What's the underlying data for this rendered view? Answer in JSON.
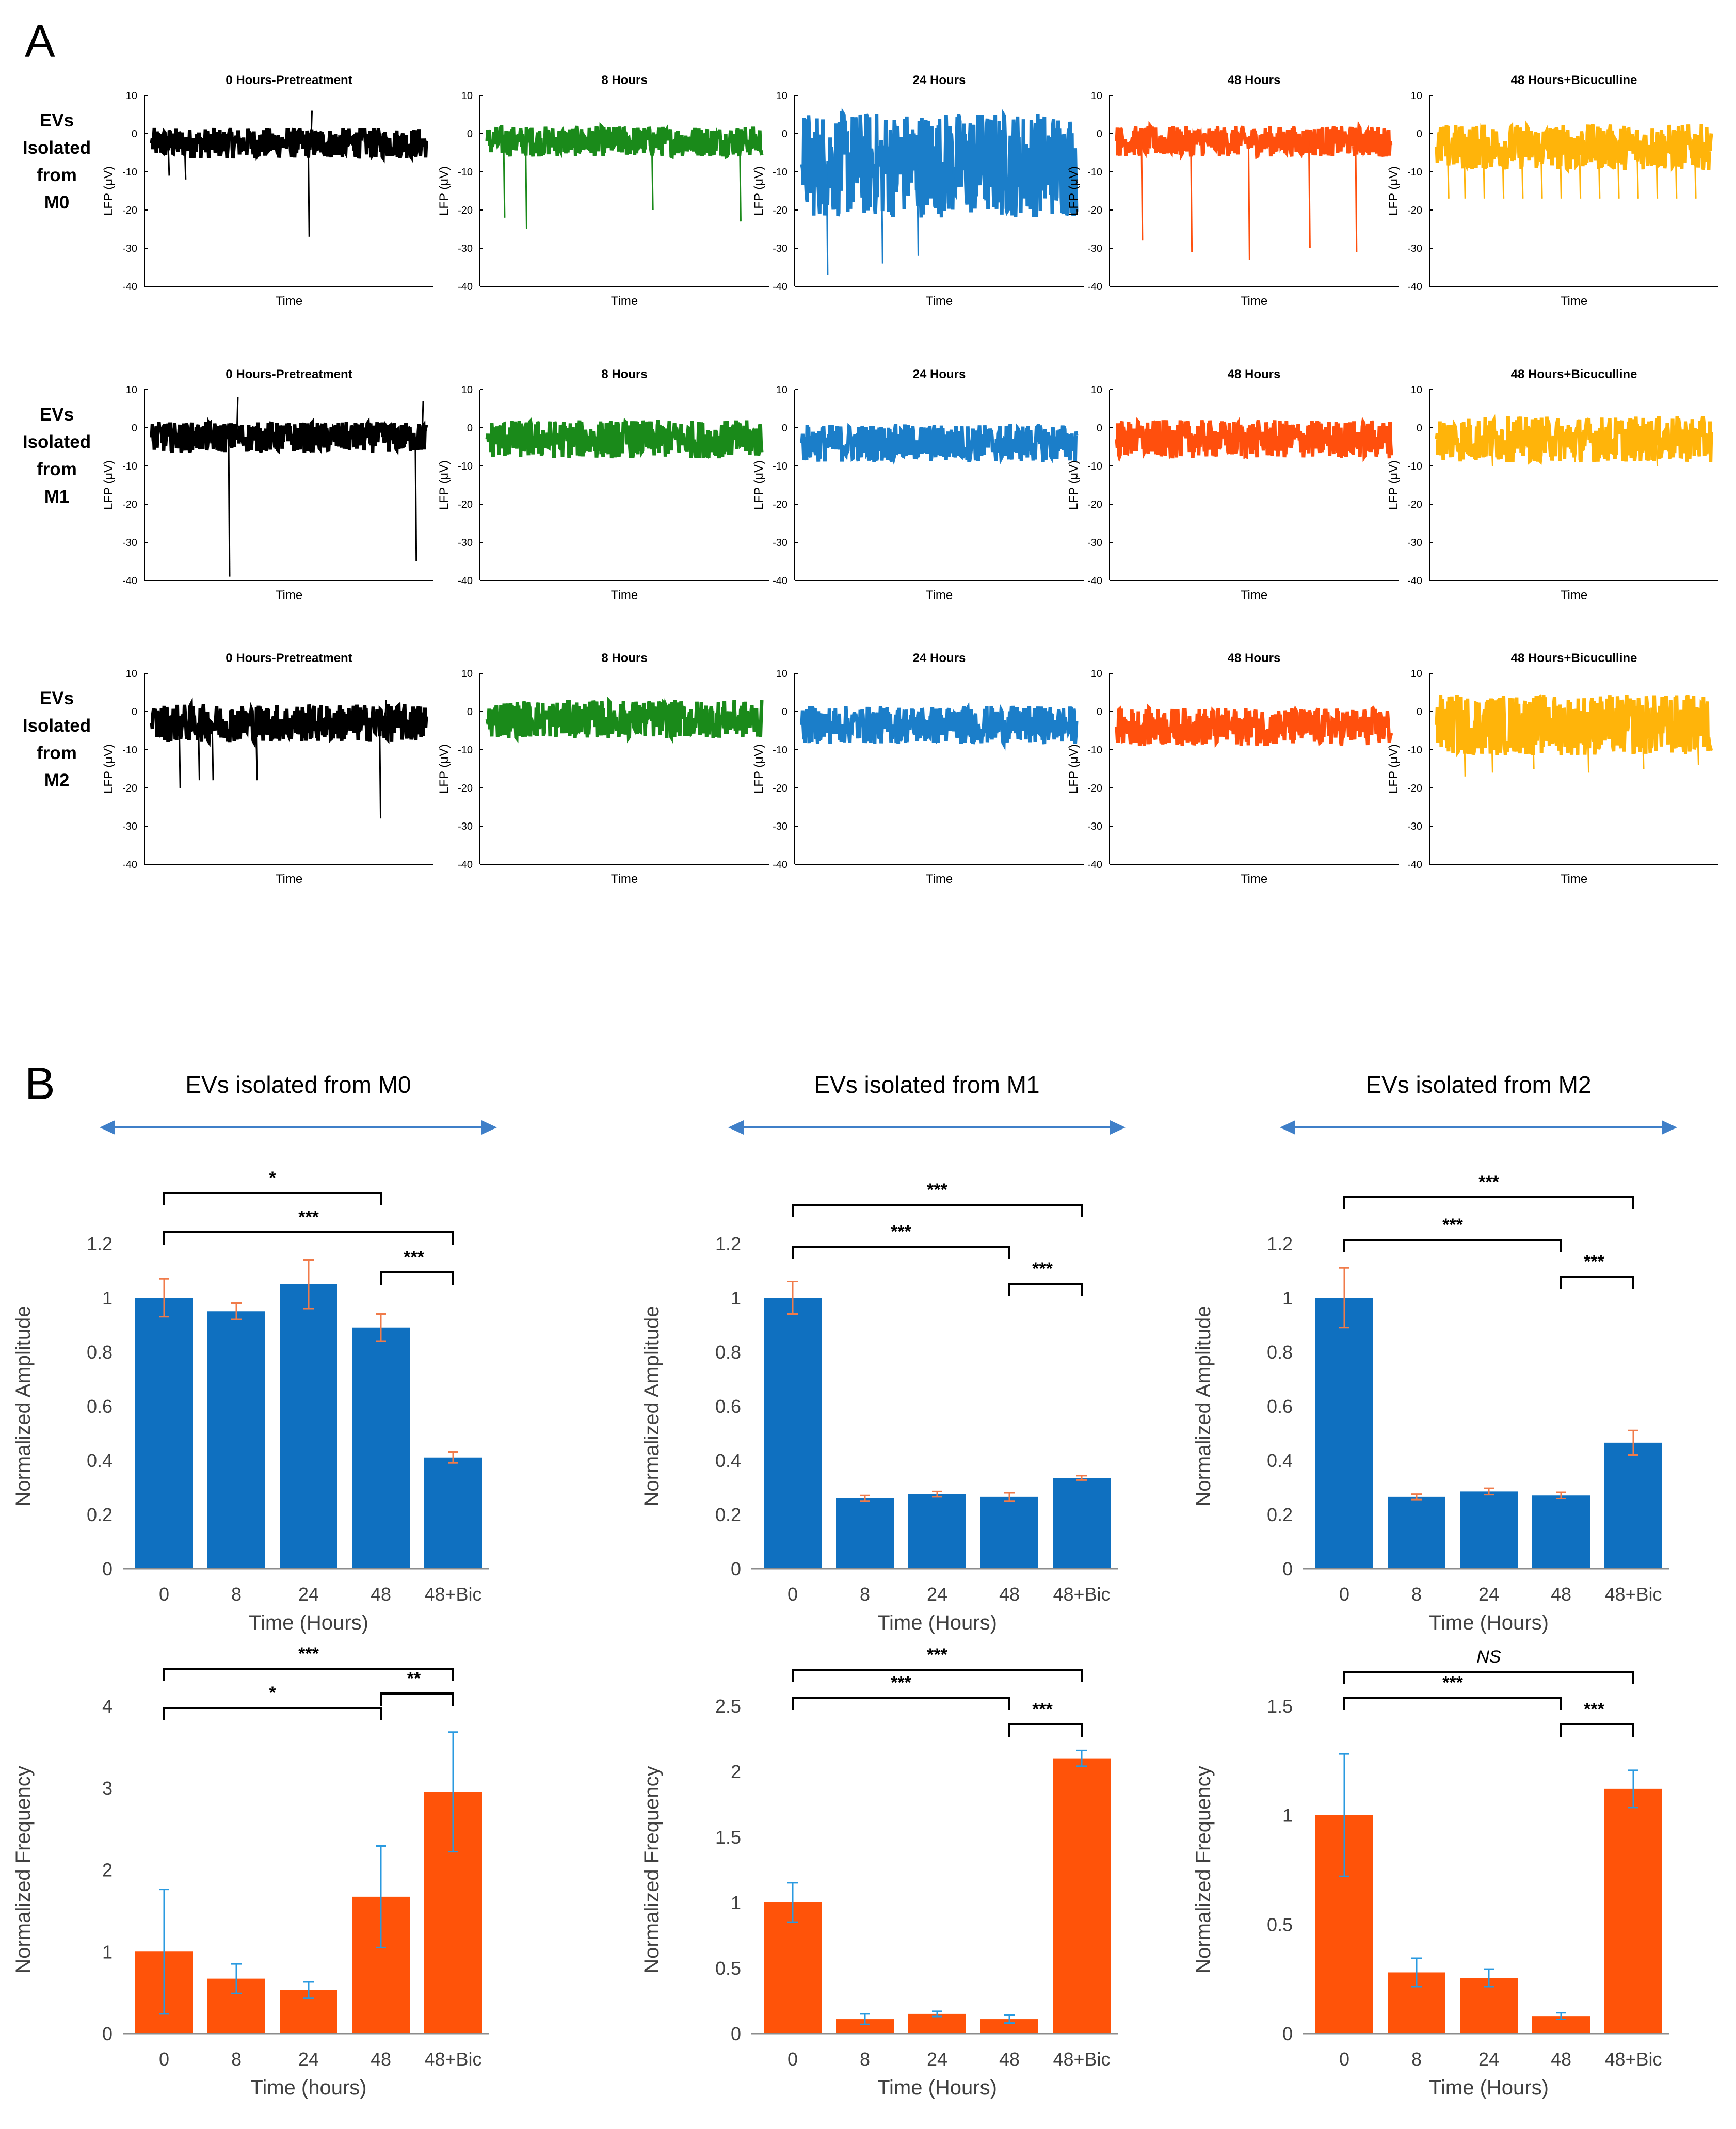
{
  "panel_labels": {
    "a": "A",
    "b": "B"
  },
  "colors": {
    "t0": "#000000",
    "t8": "#1a8a1a",
    "t24": "#1b7ec9",
    "t48": "#ff4f0d",
    "tbic": "#ffb40a",
    "amp_bar": "#0f70c0",
    "amp_err": "#f07b4a",
    "freq_bar": "#ff5309",
    "freq_err": "#2a9ae0",
    "arrow": "#3f7fc8"
  },
  "chart_data": [
    {
      "type": "line",
      "panel": "A",
      "grid": false,
      "common": {
        "ylabel": "LFP (μV)",
        "xlabel": "Time",
        "ylim": [
          -40,
          10
        ],
        "yticks": [
          10,
          0,
          -10,
          -20,
          -30,
          -40
        ]
      },
      "row_labels": [
        [
          "EVs",
          "Isolated",
          "from",
          "M0"
        ],
        [
          "EVs",
          "Isolated",
          "from",
          "M1"
        ],
        [
          "EVs",
          "Isolated",
          "from",
          "M2"
        ]
      ],
      "column_titles": [
        "0 Hours-Pretreatment",
        "8 Hours",
        "24 Hours",
        "48 Hours",
        "48 Hours+Bicuculline"
      ],
      "column_colors": [
        "t0",
        "t8",
        "t24",
        "t48",
        "tbic"
      ],
      "traces": [
        [
          {
            "baseline": -2.5,
            "noise": 4,
            "spikes": [
              [
                0.06,
                -11
              ],
              [
                0.12,
                -12
              ],
              [
                0.57,
                -27
              ],
              [
                0.58,
                6
              ]
            ]
          },
          {
            "baseline": -2,
            "noise": 4,
            "spikes": [
              [
                0.06,
                -22
              ],
              [
                0.14,
                -25
              ],
              [
                0.6,
                -20
              ],
              [
                0.92,
                -23
              ]
            ]
          },
          {
            "baseline": -8,
            "noise": 14,
            "spikes": [
              [
                0.09,
                -37
              ],
              [
                0.29,
                -34
              ],
              [
                0.42,
                -32
              ],
              [
                0.55,
                -14
              ]
            ]
          },
          {
            "baseline": -2,
            "noise": 4,
            "spikes": [
              [
                0.09,
                -28
              ],
              [
                0.27,
                -31
              ],
              [
                0.48,
                -33
              ],
              [
                0.7,
                -30
              ],
              [
                0.87,
                -31
              ]
            ]
          },
          {
            "baseline": -3.5,
            "noise": 6,
            "spikes": [
              [
                0.04,
                -17
              ],
              [
                0.1,
                -17
              ],
              [
                0.17,
                -17
              ],
              [
                0.24,
                -17
              ],
              [
                0.31,
                -17
              ],
              [
                0.38,
                -17
              ],
              [
                0.45,
                -17
              ],
              [
                0.52,
                -17
              ],
              [
                0.59,
                -17
              ],
              [
                0.66,
                -17
              ],
              [
                0.73,
                -17
              ],
              [
                0.8,
                -17
              ],
              [
                0.87,
                -17
              ],
              [
                0.94,
                -17
              ]
            ]
          }
        ],
        [
          {
            "baseline": -2.5,
            "noise": 4,
            "spikes": [
              [
                0.28,
                -39
              ],
              [
                0.31,
                8
              ],
              [
                0.96,
                -35
              ],
              [
                0.985,
                7
              ]
            ]
          },
          {
            "baseline": -3,
            "noise": 5,
            "spikes": []
          },
          {
            "baseline": -4,
            "noise": 5,
            "spikes": []
          },
          {
            "baseline": -3,
            "noise": 5,
            "spikes": []
          },
          {
            "baseline": -3,
            "noise": 6,
            "spikes": [
              [
                0.2,
                -10
              ],
              [
                0.5,
                -9
              ],
              [
                0.8,
                -10
              ]
            ]
          }
        ],
        [
          {
            "baseline": -3,
            "noise": 5,
            "spikes": [
              [
                0.1,
                -20
              ],
              [
                0.17,
                -18
              ],
              [
                0.22,
                -18
              ],
              [
                0.38,
                -18
              ],
              [
                0.83,
                -28
              ],
              [
                0.85,
                3
              ]
            ]
          },
          {
            "baseline": -2,
            "noise": 5,
            "spikes": []
          },
          {
            "baseline": -3.5,
            "noise": 5,
            "spikes": []
          },
          {
            "baseline": -4,
            "noise": 5,
            "spikes": []
          },
          {
            "baseline": -3.5,
            "noise": 8,
            "spikes": [
              [
                0.1,
                -17
              ],
              [
                0.2,
                -16
              ],
              [
                0.35,
                -15
              ],
              [
                0.55,
                -16
              ],
              [
                0.75,
                -15
              ],
              [
                0.95,
                -14
              ]
            ]
          }
        ]
      ]
    },
    {
      "type": "bar",
      "panel": "B",
      "group": "EVs isolated from M0",
      "title": "EVs isolated from M0",
      "categories": [
        "0",
        "8",
        "24",
        "48",
        "48+Bic"
      ],
      "values": [
        1.0,
        0.95,
        1.05,
        0.89,
        0.41
      ],
      "errors": [
        0.07,
        0.03,
        0.09,
        0.05,
        0.02
      ],
      "ylabel": "Normalized Amplitude",
      "xlabel": "Time (Hours)",
      "ylim": [
        0,
        1.2
      ],
      "yticks": [
        "0",
        "0.2",
        "0.4",
        "0.6",
        "0.8",
        "1",
        "1.2"
      ],
      "significance": [
        {
          "from": 0,
          "to": 3,
          "label": "*"
        },
        {
          "from": 0,
          "to": 4,
          "label": "***"
        },
        {
          "from": 3,
          "to": 4,
          "label": "***"
        }
      ]
    },
    {
      "type": "bar",
      "panel": "B",
      "group": "EVs isolated from M1",
      "title": "EVs isolated from M1",
      "categories": [
        "0",
        "8",
        "24",
        "48",
        "48+Bic"
      ],
      "values": [
        1.0,
        0.26,
        0.275,
        0.265,
        0.335
      ],
      "errors": [
        0.06,
        0.01,
        0.01,
        0.015,
        0.008
      ],
      "ylabel": "Normalized Amplitude",
      "xlabel": "Time (Hours)",
      "ylim": [
        0,
        1.2
      ],
      "yticks": [
        "0",
        "0.2",
        "0.4",
        "0.6",
        "0.8",
        "1",
        "1.2"
      ],
      "significance": [
        {
          "from": 0,
          "to": 4,
          "label": "***"
        },
        {
          "from": 0,
          "to": 3,
          "label": "***"
        },
        {
          "from": 3,
          "to": 4,
          "label": "***"
        }
      ]
    },
    {
      "type": "bar",
      "panel": "B",
      "group": "EVs isolated from M2",
      "title": "EVs isolated from M2",
      "categories": [
        "0",
        "8",
        "24",
        "48",
        "48+Bic"
      ],
      "values": [
        1.0,
        0.265,
        0.285,
        0.27,
        0.465
      ],
      "errors": [
        0.11,
        0.01,
        0.012,
        0.012,
        0.045
      ],
      "ylabel": "Normalized Amplitude",
      "xlabel": "Time (Hours)",
      "ylim": [
        0,
        1.2
      ],
      "yticks": [
        "0",
        "0.2",
        "0.4",
        "0.6",
        "0.8",
        "1",
        "1.2"
      ],
      "significance": [
        {
          "from": 0,
          "to": 4,
          "label": "***"
        },
        {
          "from": 0,
          "to": 3,
          "label": "***"
        },
        {
          "from": 3,
          "to": 4,
          "label": "***"
        }
      ]
    },
    {
      "type": "bar",
      "panel": "B",
      "group": "EVs isolated from M0",
      "categories": [
        "0",
        "8",
        "24",
        "48",
        "48+Bic"
      ],
      "values": [
        1.0,
        0.67,
        0.53,
        1.67,
        2.95
      ],
      "errors": [
        0.76,
        0.18,
        0.1,
        0.62,
        0.73
      ],
      "ylabel": "Normalized Frequency",
      "xlabel": "Time (hours)",
      "ylim": [
        0,
        4
      ],
      "yticks": [
        "0",
        "1",
        "2",
        "3",
        "4"
      ],
      "significance": [
        {
          "from": 0,
          "to": 4,
          "label": "***"
        },
        {
          "from": 0,
          "to": 3,
          "label": "*"
        },
        {
          "from": 3,
          "to": 4,
          "label": "**"
        }
      ]
    },
    {
      "type": "bar",
      "panel": "B",
      "group": "EVs isolated from M1",
      "categories": [
        "0",
        "8",
        "24",
        "48",
        "48+Bic"
      ],
      "values": [
        1.0,
        0.11,
        0.15,
        0.11,
        2.1
      ],
      "errors": [
        0.15,
        0.04,
        0.02,
        0.03,
        0.06
      ],
      "ylabel": "Normalized Frequency",
      "xlabel": "Time (Hours)",
      "ylim": [
        0,
        2.5
      ],
      "yticks": [
        "0",
        "0.5",
        "1",
        "1.5",
        "2",
        "2.5"
      ],
      "significance": [
        {
          "from": 0,
          "to": 4,
          "label": "***"
        },
        {
          "from": 0,
          "to": 3,
          "label": "***"
        },
        {
          "from": 3,
          "to": 4,
          "label": "***"
        }
      ]
    },
    {
      "type": "bar",
      "panel": "B",
      "group": "EVs isolated from M2",
      "categories": [
        "0",
        "8",
        "24",
        "48",
        "48+Bic"
      ],
      "values": [
        1.0,
        0.28,
        0.255,
        0.08,
        1.12
      ],
      "errors": [
        0.28,
        0.065,
        0.04,
        0.015,
        0.085
      ],
      "ylabel": "Normalized Frequency",
      "xlabel": "Time (Hours)",
      "ylim": [
        0,
        1.5
      ],
      "yticks": [
        "0",
        "0.5",
        "1",
        "1.5"
      ],
      "significance": [
        {
          "from": 0,
          "to": 4,
          "label": "NS"
        },
        {
          "from": 0,
          "to": 3,
          "label": "***"
        },
        {
          "from": 3,
          "to": 4,
          "label": "***"
        }
      ]
    }
  ]
}
